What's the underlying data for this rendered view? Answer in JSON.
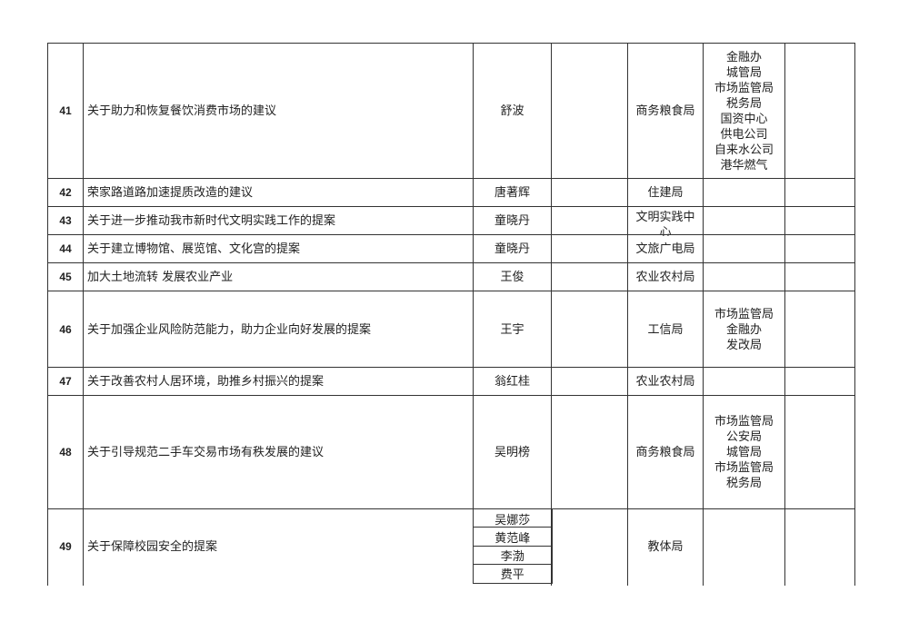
{
  "rows": [
    {
      "no": "41",
      "title": "关于助力和恢复餐饮消费市场的建议",
      "proposers": [
        "舒波"
      ],
      "lead": "商务粮食局",
      "co": [
        "金融办",
        "城管局",
        "市场监管局",
        "税务局",
        "国资中心",
        "供电公司",
        "自来水公司",
        "港华燃气"
      ]
    },
    {
      "no": "42",
      "title": "荣家路道路加速提质改造的建议",
      "proposers": [
        "唐著辉"
      ],
      "lead": "住建局",
      "co": []
    },
    {
      "no": "43",
      "title": "关于进一步推动我市新时代文明实践工作的提案",
      "proposers": [
        "童晓丹"
      ],
      "lead": "文明实践中心",
      "co": []
    },
    {
      "no": "44",
      "title": "关于建立博物馆、展览馆、文化宫的提案",
      "proposers": [
        "童晓丹"
      ],
      "lead": "文旅广电局",
      "co": []
    },
    {
      "no": "45",
      "title": "加大土地流转  发展农业产业",
      "proposers": [
        "王俊"
      ],
      "lead": "农业农村局",
      "co": []
    },
    {
      "no": "46",
      "title": "关于加强企业风险防范能力，助力企业向好发展的提案",
      "proposers": [
        "王宇"
      ],
      "lead": "工信局",
      "co": [
        "市场监管局",
        "金融办",
        "发改局"
      ]
    },
    {
      "no": "47",
      "title": "关于改善农村人居环境，助推乡村振兴的提案",
      "proposers": [
        "翁红桂"
      ],
      "lead": "农业农村局",
      "co": []
    },
    {
      "no": "48",
      "title": "关于引导规范二手车交易市场有秩发展的建议",
      "proposers": [
        "吴明榜"
      ],
      "lead": "商务粮食局",
      "co": [
        "市场监管局",
        "公安局",
        "城管局",
        "市场监管局",
        "税务局"
      ]
    },
    {
      "no": "49",
      "title": "关于保障校园安全的提案",
      "proposers": [
        "吴娜莎",
        "黄范峰",
        "李渤",
        "费平"
      ],
      "lead": "教体局",
      "co": []
    }
  ]
}
